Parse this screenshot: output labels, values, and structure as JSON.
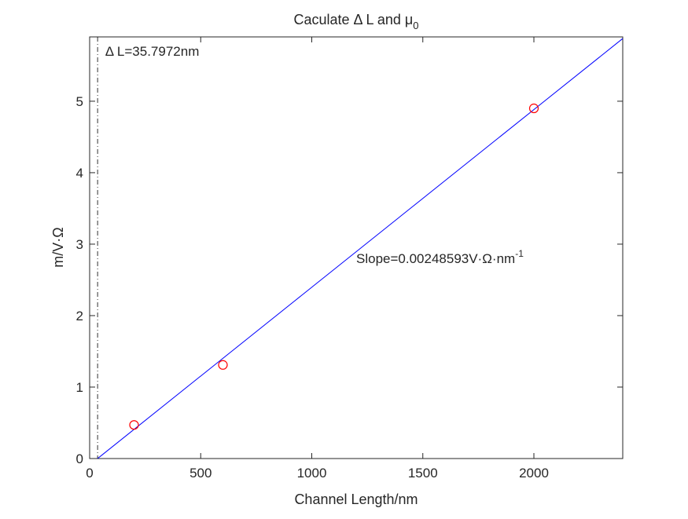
{
  "chart_data": {
    "type": "scatter",
    "title": "Caculate Δ L and μ",
    "title_subscript": "0",
    "xlabel": "Channel Length/nm",
    "ylabel": "m/V·Ω",
    "xlim": [
      0,
      2400
    ],
    "ylim": [
      0,
      5.9
    ],
    "x_ticks": [
      0,
      500,
      1000,
      1500,
      2000
    ],
    "x_tick_labels": [
      "0",
      "500",
      "1000",
      "1500",
      "2000"
    ],
    "y_ticks": [
      0,
      1,
      2,
      3,
      4,
      5
    ],
    "y_tick_labels": [
      "0",
      "1",
      "2",
      "3",
      "4",
      "5"
    ],
    "grid": false,
    "series": [
      {
        "type": "scatter",
        "marker": "circle",
        "color": "#ff0000",
        "x": [
          200,
          600,
          2000
        ],
        "y": [
          0.47,
          1.31,
          4.9
        ]
      }
    ],
    "fit_line": {
      "color": "#0000ff",
      "slope": 0.00248593,
      "x_intercept": 35.7972,
      "x_range": [
        35.7972,
        2400
      ]
    },
    "vertical_line": {
      "x": 35.7972,
      "style": "dash-dot",
      "color": "#000000"
    },
    "annotations": {
      "delta_l": {
        "text": "Δ L=35.7972nm",
        "x": 70,
        "y": 5.7
      },
      "slope": {
        "text": "Slope=0.00248593V·Ω·nm",
        "superscript": "-1",
        "x": 1200,
        "y": 2.8
      }
    }
  }
}
